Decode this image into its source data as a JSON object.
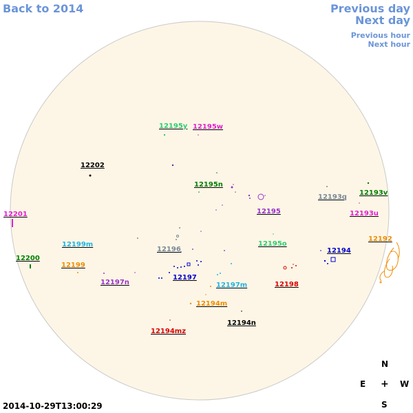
{
  "nav": {
    "back": "Back to 2014",
    "prev_day": "Previous day",
    "next_day": "Next day",
    "prev_hour": "Previous hour",
    "next_hour": "Next hour"
  },
  "timestamp": "2014-10-29T13:00:29",
  "compass": {
    "n": "N",
    "e": "E",
    "w": "W",
    "s": "S",
    "center": "+"
  },
  "colors": {
    "disk_fill": "#fdf6e6",
    "disk_stroke": "#c9c9c9",
    "nav_link": "#6b95d8"
  },
  "regions": [
    {
      "id": "12195y",
      "color": "#2ecc71"
    },
    {
      "id": "12195w",
      "color": "#e020d0"
    },
    {
      "id": "12202",
      "color": "#000000"
    },
    {
      "id": "12195n",
      "color": "#008000"
    },
    {
      "id": "12193q",
      "color": "#7a8a99"
    },
    {
      "id": "12193v",
      "color": "#008000"
    },
    {
      "id": "12195",
      "color": "#9932cc"
    },
    {
      "id": "12193u",
      "color": "#e020d0"
    },
    {
      "id": "12201",
      "color": "#e020d0"
    },
    {
      "id": "12192",
      "color": "#f08c00"
    },
    {
      "id": "12199m",
      "color": "#1eb4e6"
    },
    {
      "id": "12196",
      "color": "#7a8a99"
    },
    {
      "id": "12195o",
      "color": "#2ecc71"
    },
    {
      "id": "12194",
      "color": "#0000cc"
    },
    {
      "id": "12200",
      "color": "#008000"
    },
    {
      "id": "12199",
      "color": "#f08c00"
    },
    {
      "id": "12197",
      "color": "#0000cc"
    },
    {
      "id": "12197n",
      "color": "#9932cc"
    },
    {
      "id": "12197m",
      "color": "#1eb4e6"
    },
    {
      "id": "12198",
      "color": "#dd0000"
    },
    {
      "id": "12194m",
      "color": "#f08c00"
    },
    {
      "id": "12194n",
      "color": "#000000"
    },
    {
      "id": "12194mz",
      "color": "#dd0000"
    }
  ]
}
